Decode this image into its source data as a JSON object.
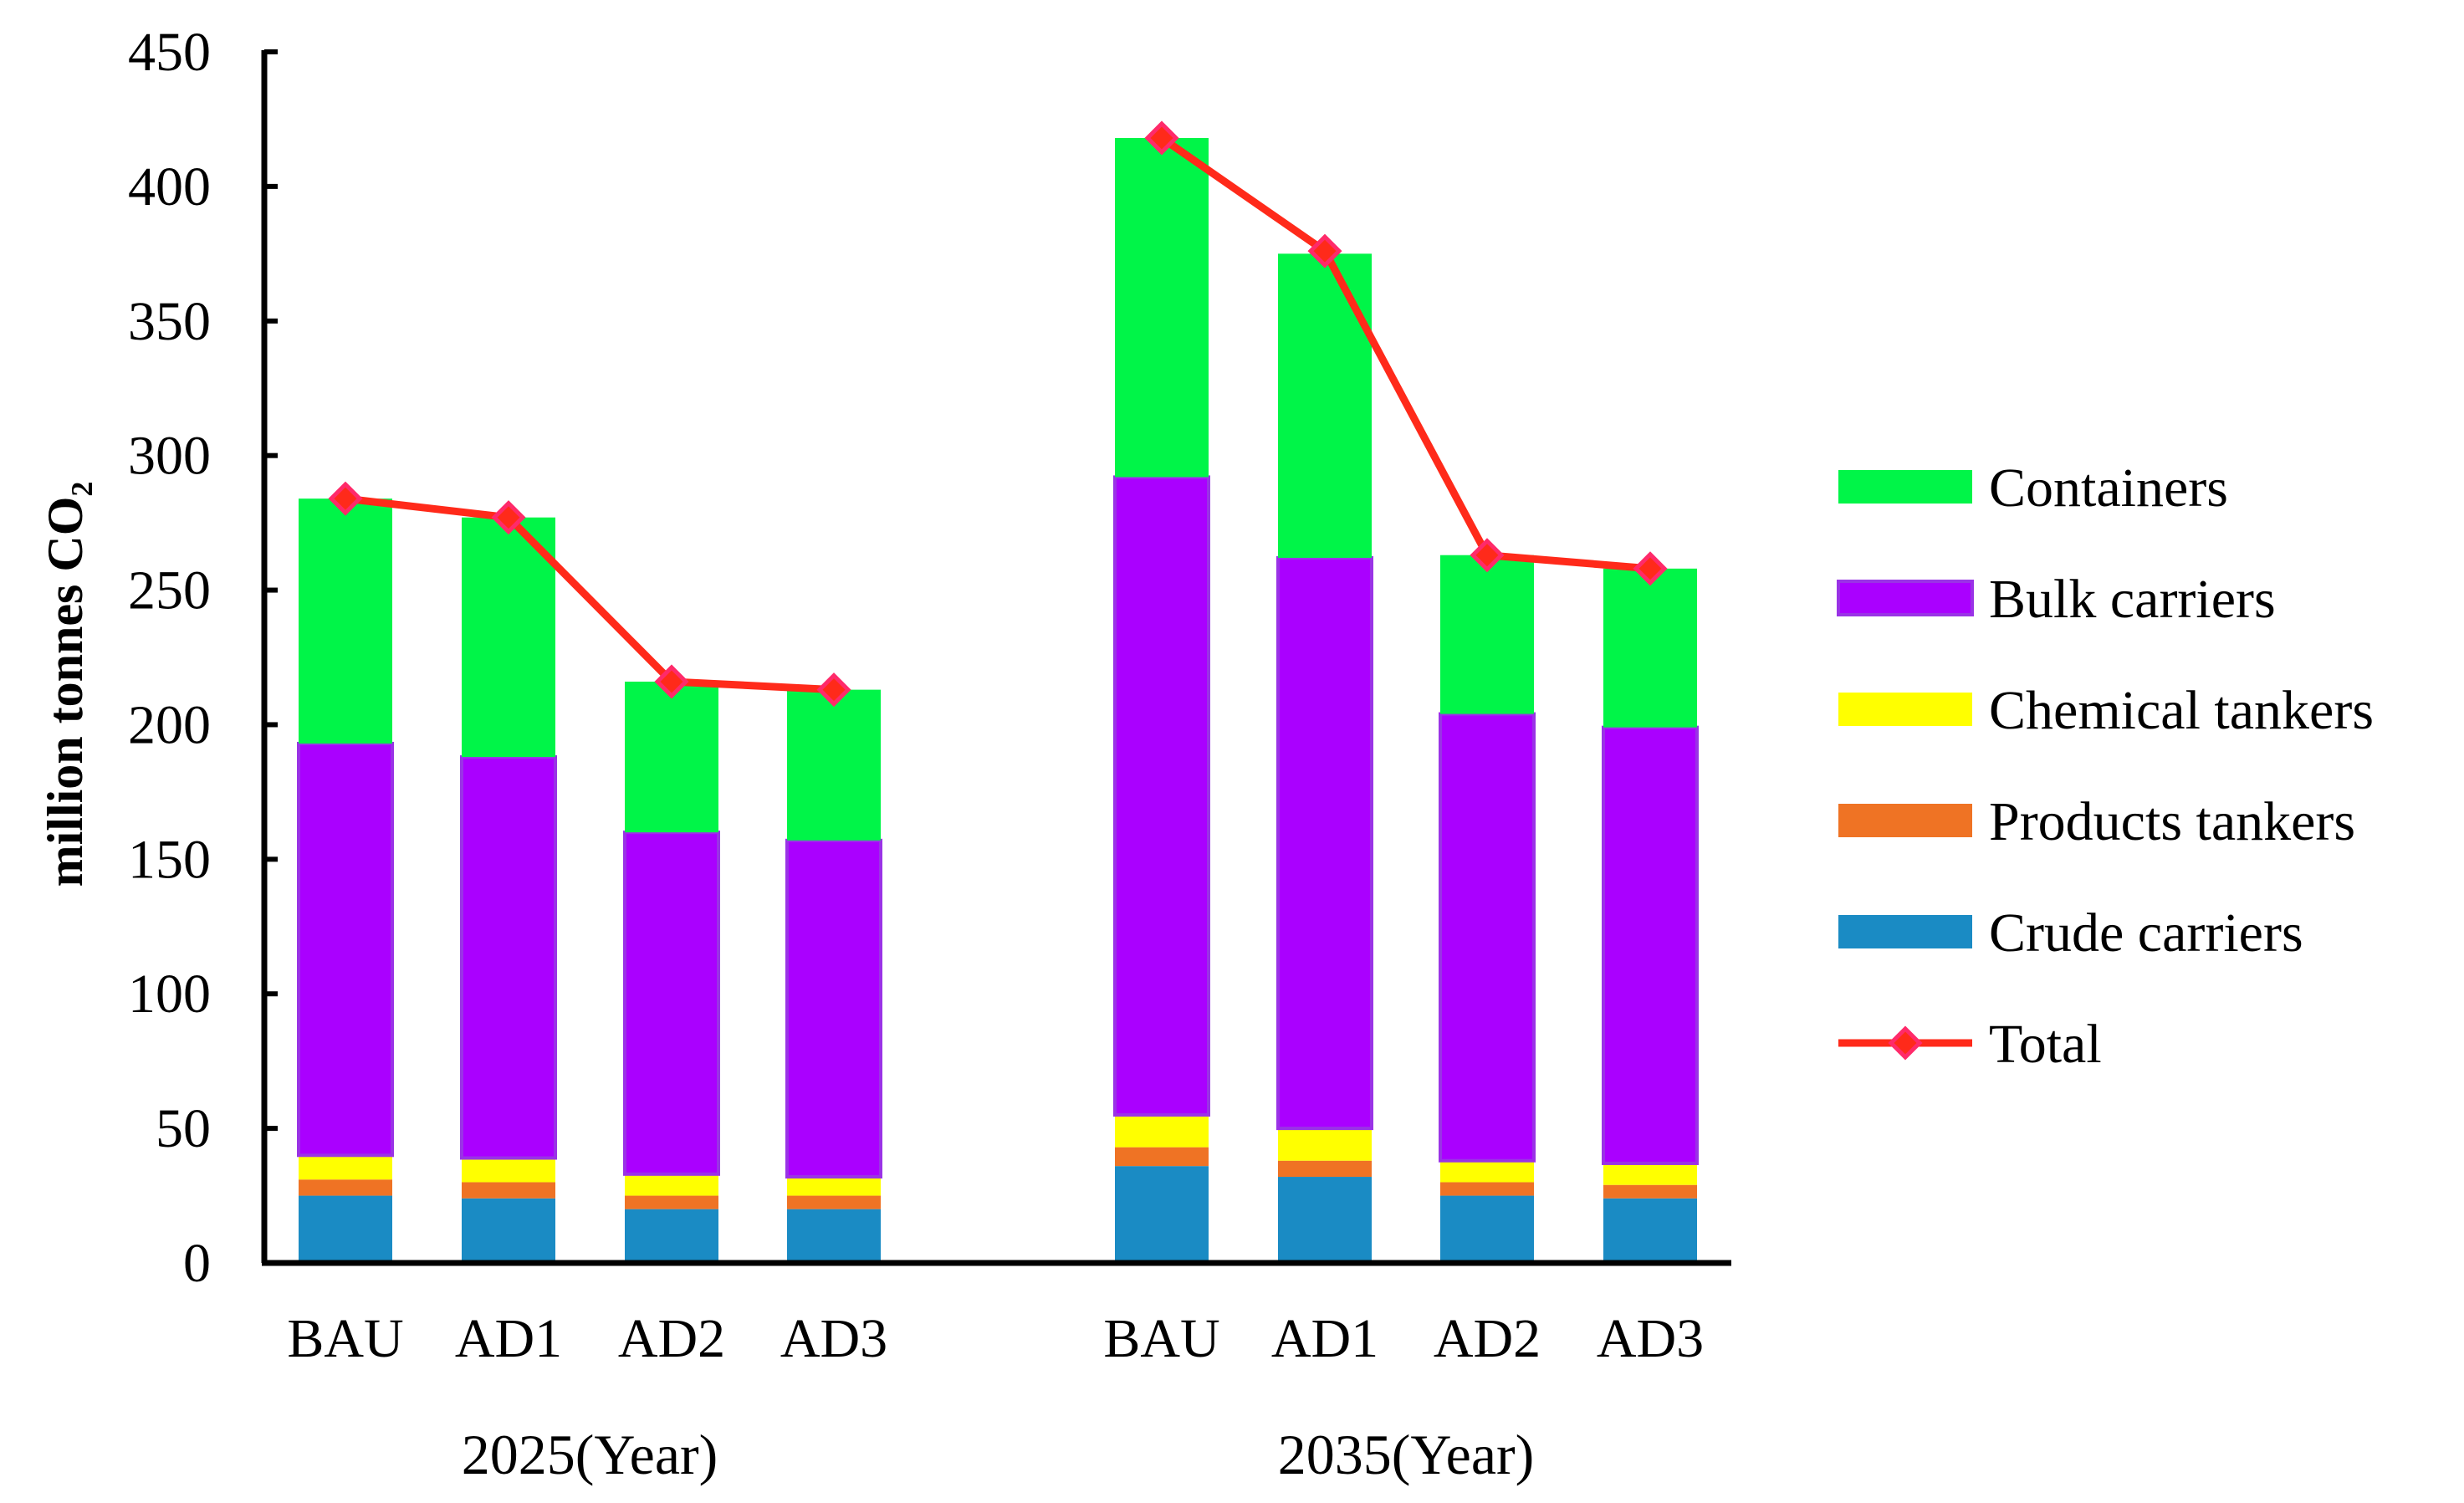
{
  "chart_data": {
    "type": "bar",
    "stacked": true,
    "title": "",
    "xlabel": "",
    "ylabel": "million tonnes CO₂",
    "ylim": [
      0,
      450
    ],
    "yticks": [
      0,
      50,
      100,
      150,
      200,
      250,
      300,
      350,
      400,
      450
    ],
    "groups": [
      {
        "label": "2025(Year)",
        "categories": [
          "BAU",
          "AD1",
          "AD2",
          "AD3"
        ]
      },
      {
        "label": "2035(Year)",
        "categories": [
          "BAU",
          "AD1",
          "AD2",
          "AD3"
        ]
      }
    ],
    "series": [
      {
        "name": "Crude carriers",
        "color": "#1a8bc4",
        "values": [
          25,
          24,
          20,
          20,
          36,
          32,
          25,
          24
        ]
      },
      {
        "name": "Products tankers",
        "color": "#ef7324",
        "values": [
          6,
          6,
          5,
          5,
          7,
          6,
          5,
          5
        ]
      },
      {
        "name": "Chemical tankers",
        "color": "#ffff00",
        "values": [
          9,
          9,
          8,
          7,
          12,
          12,
          8,
          8
        ]
      },
      {
        "name": "Bulk carriers",
        "color": "#aa00ff",
        "values": [
          153,
          149,
          127,
          125,
          237,
          212,
          166,
          162
        ]
      },
      {
        "name": "Containers",
        "color": "#00f548",
        "values": [
          91,
          89,
          56,
          56,
          126,
          113,
          59,
          59
        ]
      }
    ],
    "line": {
      "name": "Total",
      "color": "#ff2a1a",
      "marker_color": "#ff2a6a",
      "values": [
        284,
        277,
        216,
        213,
        418,
        376,
        263,
        258
      ]
    },
    "legend": [
      "Containers",
      "Bulk carriers",
      "Chemical tankers",
      "Products tankers",
      "Crude carriers",
      "Total"
    ],
    "legend_position": "right"
  }
}
